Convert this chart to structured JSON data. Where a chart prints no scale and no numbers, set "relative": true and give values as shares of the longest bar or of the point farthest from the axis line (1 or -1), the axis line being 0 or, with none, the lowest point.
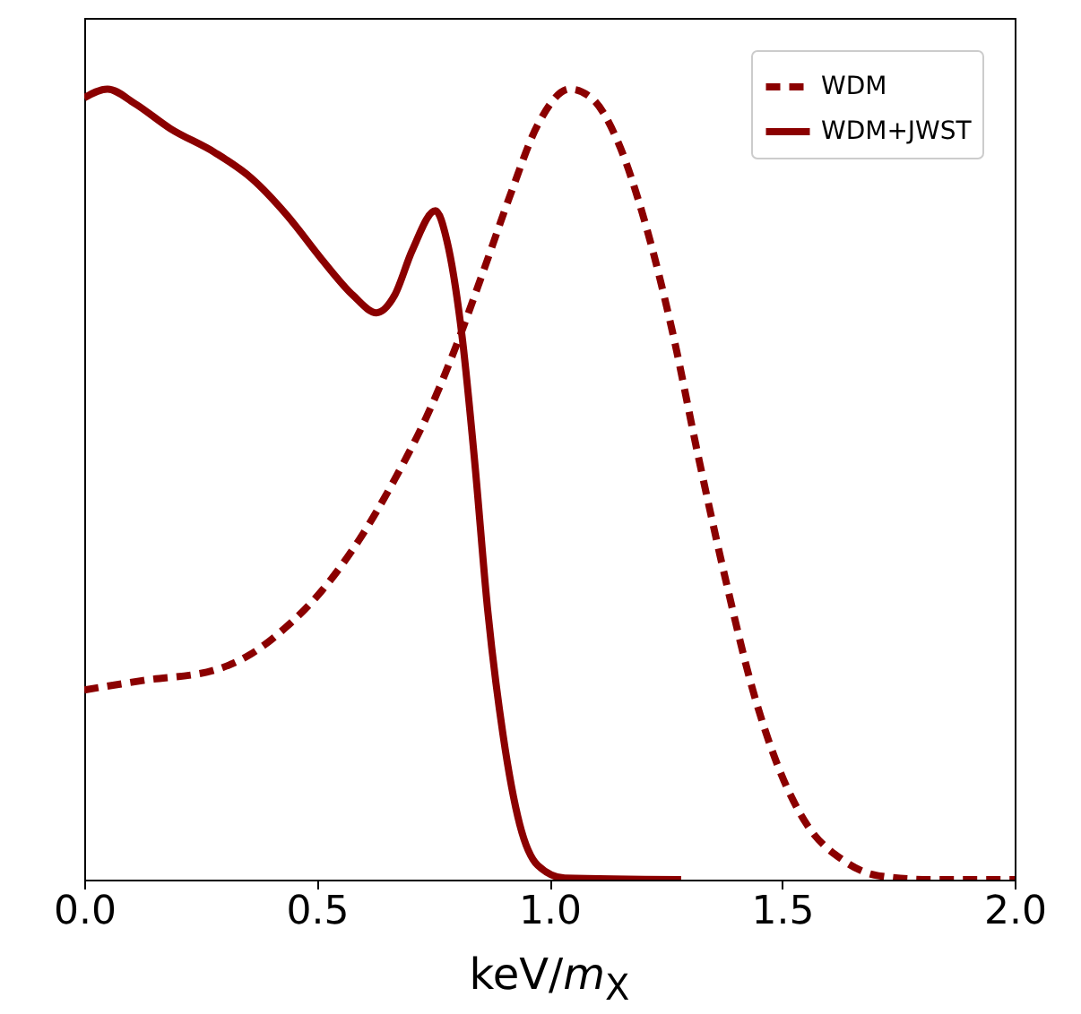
{
  "chart_data": {
    "type": "line",
    "relative": true,
    "xlabel": "keV/m$_{X}$",
    "legend": "top right",
    "xlim": [
      0,
      2
    ],
    "xticks": [
      {
        "value": 0,
        "label": "0.0"
      },
      {
        "value": 0.5,
        "label": "0.5"
      },
      {
        "value": 1,
        "label": "1.0"
      },
      {
        "value": 1.5,
        "label": "1.5"
      },
      {
        "value": 2,
        "label": "2.0"
      }
    ],
    "series": [
      {
        "name": "WDM",
        "color": "#8b0000",
        "line_style": "dashed",
        "x": [
          0,
          0.127,
          0.28,
          0.36,
          0.435,
          0.51,
          0.59,
          0.667,
          0.744,
          0.8,
          0.86,
          0.917,
          0.975,
          1.044,
          1.09,
          1.148,
          1.206,
          1.264,
          1.32,
          1.38,
          1.437,
          1.495,
          1.553,
          1.63,
          1.707,
          1.82,
          2.0
        ],
        "values": [
          0.24,
          0.252,
          0.265,
          0.286,
          0.32,
          0.365,
          0.429,
          0.506,
          0.596,
          0.676,
          0.773,
          0.868,
          0.955,
          1.0,
          0.989,
          0.932,
          0.83,
          0.694,
          0.535,
          0.376,
          0.24,
          0.138,
          0.07,
          0.025,
          0.005,
          0,
          0
        ]
      },
      {
        "name": "WDM+JWST",
        "color": "#8b0000",
        "line_style": "solid",
        "x": [
          0,
          0.05,
          0.108,
          0.185,
          0.28,
          0.36,
          0.435,
          0.51,
          0.578,
          0.628,
          0.667,
          0.705,
          0.755,
          0.78,
          0.813,
          0.84,
          0.867,
          0.9,
          0.936,
          0.975,
          1.033,
          1.283
        ],
        "values": [
          0.989,
          1.0,
          0.982,
          0.95,
          0.92,
          0.887,
          0.841,
          0.785,
          0.739,
          0.717,
          0.739,
          0.796,
          0.846,
          0.807,
          0.683,
          0.524,
          0.342,
          0.184,
          0.07,
          0.018,
          0.002,
          0
        ]
      }
    ]
  }
}
